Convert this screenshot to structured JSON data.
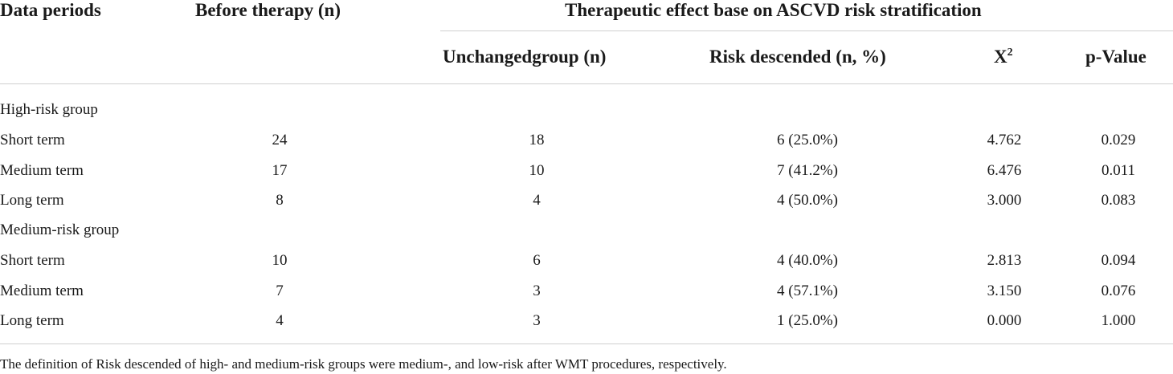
{
  "headers": {
    "col1": "Data periods",
    "col2": "Before therapy (n)",
    "group": "Therapeutic effect base on ASCVD risk stratification",
    "sub1": "Unchangedgroup (n)",
    "sub2": "Risk descended (n, %)",
    "sub3_base": "X",
    "sub3_sup": "2",
    "sub4": "p-Value"
  },
  "groups": [
    {
      "label": "High-risk group",
      "rows": [
        {
          "period": "Short term",
          "before": "24",
          "unchanged": "18",
          "descended": "6 (25.0%)",
          "chi2": "4.762",
          "p": "0.029"
        },
        {
          "period": "Medium term",
          "before": "17",
          "unchanged": "10",
          "descended": "7 (41.2%)",
          "chi2": "6.476",
          "p": "0.011"
        },
        {
          "period": "Long term",
          "before": "8",
          "unchanged": "4",
          "descended": "4 (50.0%)",
          "chi2": "3.000",
          "p": "0.083"
        }
      ]
    },
    {
      "label": "Medium-risk group",
      "rows": [
        {
          "period": "Short term",
          "before": "10",
          "unchanged": "6",
          "descended": "4 (40.0%)",
          "chi2": "2.813",
          "p": "0.094"
        },
        {
          "period": "Medium term",
          "before": "7",
          "unchanged": "3",
          "descended": "4 (57.1%)",
          "chi2": "3.150",
          "p": "0.076"
        },
        {
          "period": "Long term",
          "before": "4",
          "unchanged": "3",
          "descended": "1 (25.0%)",
          "chi2": "0.000",
          "p": "1.000"
        }
      ]
    }
  ],
  "footnote": "The definition of Risk descended of high- and medium-risk groups were medium-, and low-risk after WMT procedures, respectively."
}
